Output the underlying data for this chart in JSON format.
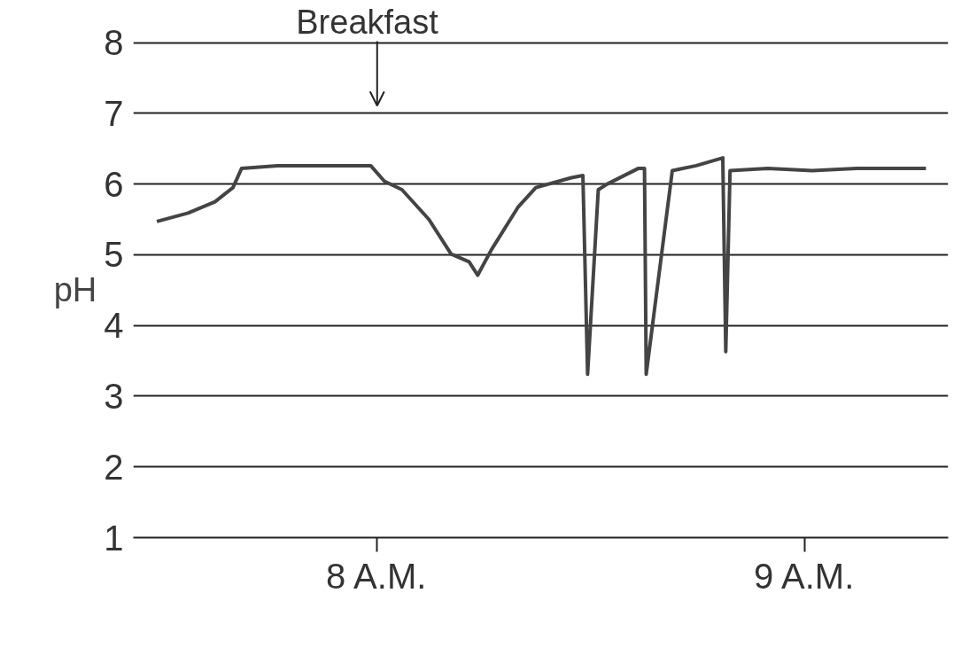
{
  "chart_data": {
    "type": "line",
    "ylabel": "pH",
    "x": [
      7.485,
      7.558,
      7.621,
      7.663,
      7.683,
      7.767,
      7.871,
      7.985,
      8.017,
      8.058,
      8.121,
      8.173,
      8.215,
      8.235,
      8.267,
      8.329,
      8.371,
      8.454,
      8.481,
      8.492,
      8.517,
      8.538,
      8.61,
      8.625,
      8.629,
      8.69,
      8.746,
      8.808,
      8.815,
      8.825,
      8.913,
      9.017,
      9.121,
      9.283
    ],
    "series": [
      {
        "color": "#444444",
        "values": [
          5.47,
          5.59,
          5.75,
          5.95,
          6.22,
          6.26,
          6.26,
          6.26,
          6.04,
          5.92,
          5.5,
          5.01,
          4.9,
          4.71,
          5.07,
          5.67,
          5.95,
          6.09,
          6.12,
          3.31,
          5.92,
          6.0,
          6.22,
          6.22,
          3.31,
          6.19,
          6.26,
          6.37,
          3.63,
          6.19,
          6.22,
          6.19,
          6.22,
          6.22
        ]
      }
    ],
    "xlim": [
      7.43,
      9.335
    ],
    "ylim": [
      1,
      8.02
    ],
    "xticks": [
      {
        "value": 8,
        "label": "8 A.M."
      },
      {
        "value": 9,
        "label": "9 A.M."
      }
    ],
    "yticks": [
      1,
      2,
      3,
      4,
      5,
      6,
      7,
      8
    ],
    "grid": "y",
    "marker": "none",
    "line_style": "solid",
    "annotations": [
      "Breakfast"
    ]
  }
}
